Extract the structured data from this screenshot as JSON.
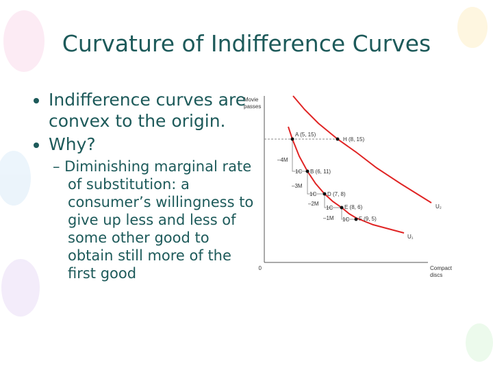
{
  "title": "Curvature of Indifference Curves",
  "bullets": [
    {
      "text": "Indifference curves are convex to the origin."
    },
    {
      "text": "Why?",
      "sub": [
        "– Diminishing marginal rate of substitution: a consumer’s willingness to give up less and less of some other good to obtain still more of the first good"
      ]
    }
  ],
  "figure": {
    "y_label": [
      "Movie",
      "passes"
    ],
    "x_label": [
      "Compact",
      "discs"
    ],
    "origin": "0",
    "points": [
      "A (5, 15)",
      "H (8, 15)",
      "B (6, 11)",
      "D (7, 8)",
      "E (8, 6)",
      "F (9, 5)"
    ],
    "curves": [
      "U₁",
      "U₂"
    ],
    "steps": [
      "–4M",
      "1C",
      "–3M",
      "1C",
      "–2M",
      "1C",
      "–1M",
      "1C"
    ]
  }
}
